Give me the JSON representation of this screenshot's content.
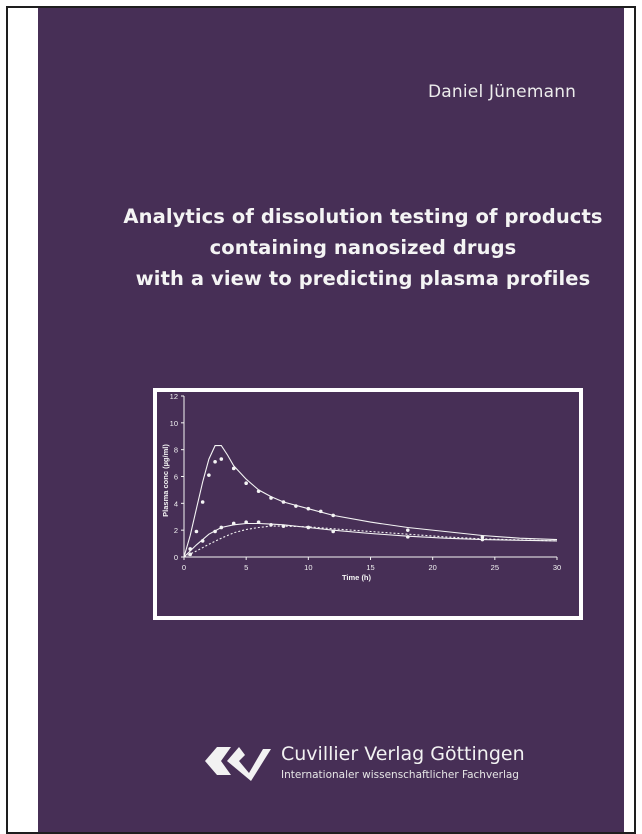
{
  "cover": {
    "author": "Daniel Jünemann",
    "title_lines": [
      "Analytics of dissolution testing of products",
      "containing nanosized drugs",
      "with a view to predicting plasma profiles"
    ],
    "background_color": "#472f56",
    "text_color": "#f4f4f4"
  },
  "publisher": {
    "name": "Cuvillier Verlag Göttingen",
    "tagline": "Internationaler wissenschaftlicher Fachverlag",
    "logo_icon": "cuvillier-logo-icon"
  },
  "chart_data": {
    "type": "line",
    "title": "",
    "xlabel": "Time (h)",
    "ylabel": "Plasma conc (µg/ml)",
    "xlim": [
      0,
      30
    ],
    "ylim": [
      0,
      12
    ],
    "x_ticks": [
      0,
      5,
      10,
      15,
      20,
      25,
      30
    ],
    "y_ticks": [
      0,
      2,
      4,
      6,
      8,
      10,
      12
    ],
    "grid": false,
    "legend": "none",
    "series": [
      {
        "style": "solid",
        "values": [
          [
            0,
            0
          ],
          [
            0.5,
            1.6
          ],
          [
            1,
            3.6
          ],
          [
            1.5,
            5.6
          ],
          [
            2,
            7.3
          ],
          [
            2.5,
            8.3
          ],
          [
            3,
            8.3
          ],
          [
            3.5,
            7.6
          ],
          [
            4,
            6.8
          ],
          [
            5,
            5.8
          ],
          [
            6,
            5.0
          ],
          [
            7,
            4.5
          ],
          [
            8,
            4.1
          ],
          [
            10,
            3.6
          ],
          [
            12,
            3.1
          ],
          [
            15,
            2.6
          ],
          [
            18,
            2.2
          ],
          [
            21,
            1.9
          ],
          [
            24,
            1.6
          ],
          [
            27,
            1.4
          ],
          [
            30,
            1.3
          ]
        ],
        "markers": [
          [
            0.5,
            0.6
          ],
          [
            1,
            1.9
          ],
          [
            1.5,
            4.1
          ],
          [
            2,
            6.1
          ],
          [
            2.5,
            7.1
          ],
          [
            3,
            7.3
          ],
          [
            4,
            6.6
          ],
          [
            5,
            5.5
          ],
          [
            6,
            4.9
          ],
          [
            7,
            4.4
          ],
          [
            8,
            4.1
          ],
          [
            9,
            3.8
          ],
          [
            10,
            3.6
          ],
          [
            11,
            3.4
          ],
          [
            12,
            3.1
          ],
          [
            18,
            2.0
          ],
          [
            24,
            1.5
          ]
        ]
      },
      {
        "style": "solid",
        "values": [
          [
            0,
            0
          ],
          [
            1,
            0.9
          ],
          [
            2,
            1.7
          ],
          [
            3,
            2.2
          ],
          [
            4,
            2.4
          ],
          [
            5,
            2.5
          ],
          [
            6,
            2.5
          ],
          [
            7,
            2.45
          ],
          [
            8,
            2.4
          ],
          [
            10,
            2.2
          ],
          [
            12,
            2.0
          ],
          [
            15,
            1.75
          ],
          [
            18,
            1.55
          ],
          [
            21,
            1.4
          ],
          [
            24,
            1.3
          ],
          [
            30,
            1.2
          ]
        ],
        "markers": [
          [
            0.5,
            0.2
          ],
          [
            1.5,
            1.2
          ],
          [
            2.5,
            1.9
          ],
          [
            3,
            2.2
          ],
          [
            4,
            2.5
          ],
          [
            5,
            2.6
          ],
          [
            6,
            2.6
          ],
          [
            7,
            2.4
          ],
          [
            8,
            2.3
          ],
          [
            10,
            2.2
          ],
          [
            12,
            1.9
          ],
          [
            18,
            1.5
          ],
          [
            24,
            1.3
          ]
        ]
      },
      {
        "style": "dashed",
        "values": [
          [
            0,
            0
          ],
          [
            1,
            0.45
          ],
          [
            2,
            0.95
          ],
          [
            3,
            1.4
          ],
          [
            4,
            1.8
          ],
          [
            5,
            2.05
          ],
          [
            6,
            2.2
          ],
          [
            7,
            2.3
          ],
          [
            8,
            2.3
          ],
          [
            10,
            2.25
          ],
          [
            12,
            2.1
          ],
          [
            15,
            1.9
          ],
          [
            18,
            1.7
          ],
          [
            21,
            1.5
          ],
          [
            24,
            1.35
          ],
          [
            30,
            1.2
          ]
        ]
      }
    ]
  }
}
